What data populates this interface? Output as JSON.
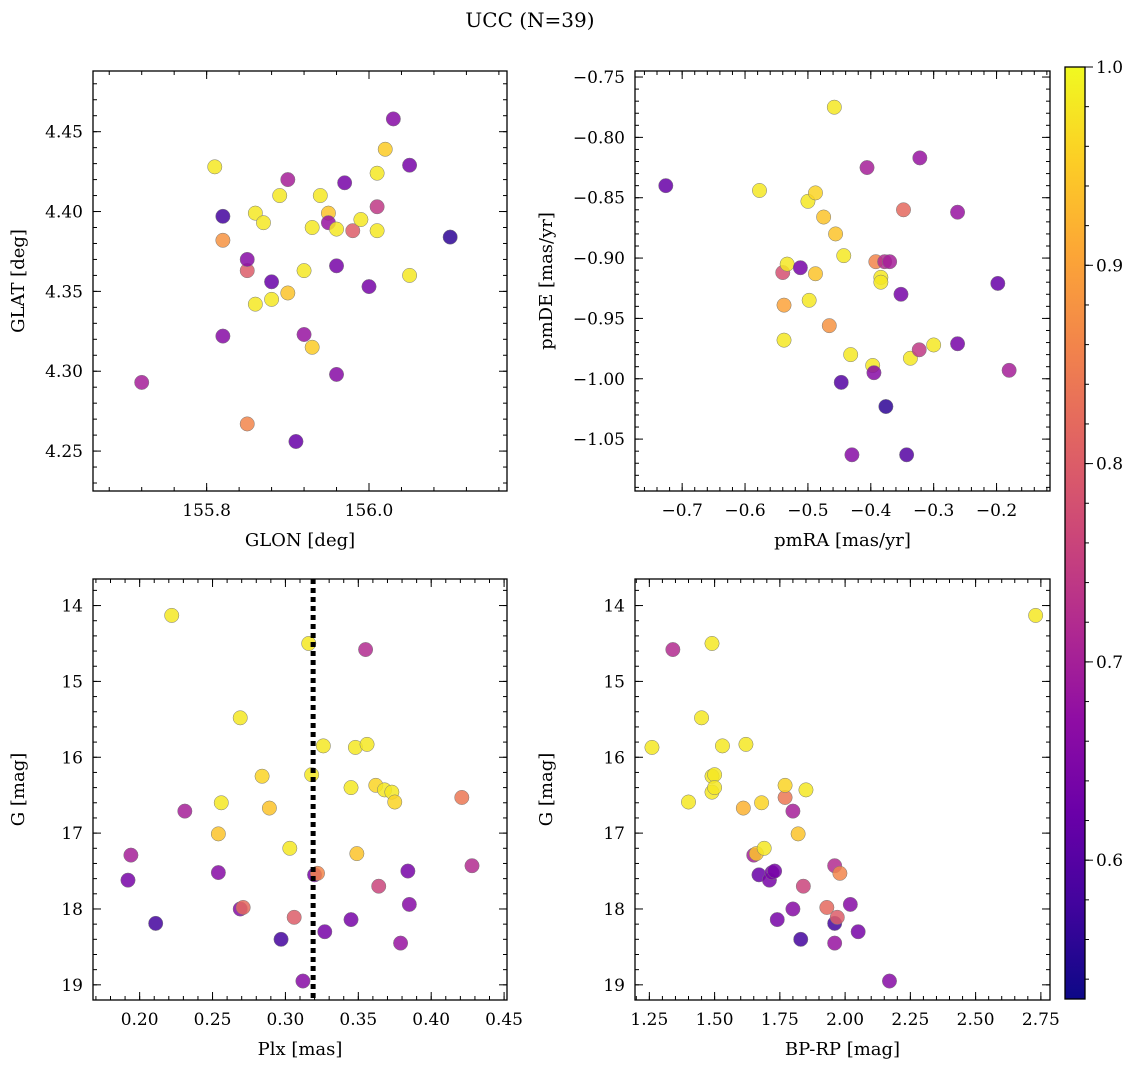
{
  "figure": {
    "title": "UCC (N=39)"
  },
  "colorbar": {
    "colormap": "plasma",
    "vmin": 0.53,
    "vmax": 1.0,
    "ticks": [
      0.6,
      0.7,
      0.8,
      0.9,
      1.0
    ],
    "tick_labels": [
      "0.6",
      "0.7",
      "0.8",
      "0.9",
      "1.0"
    ]
  },
  "chart_data": [
    {
      "type": "scatter",
      "id": "glon-glat",
      "xlabel": "GLON [deg]",
      "ylabel": "GLAT [deg]",
      "xlim": [
        155.66,
        156.17
      ],
      "ylim": [
        4.225,
        4.488
      ],
      "xticks": [
        155.8,
        156.0
      ],
      "xtick_labels": [
        "155.8",
        "156.0"
      ],
      "yticks": [
        4.25,
        4.3,
        4.35,
        4.4,
        4.45
      ],
      "ytick_labels": [
        "4.25",
        "4.30",
        "4.35",
        "4.40",
        "4.45"
      ],
      "points": [
        {
          "x": 155.72,
          "y": 4.293,
          "c": 0.7
        },
        {
          "x": 155.81,
          "y": 4.428,
          "c": 0.98
        },
        {
          "x": 155.82,
          "y": 4.397,
          "c": 0.58
        },
        {
          "x": 155.82,
          "y": 4.382,
          "c": 0.88
        },
        {
          "x": 155.82,
          "y": 4.322,
          "c": 0.66
        },
        {
          "x": 155.85,
          "y": 4.363,
          "c": 0.8
        },
        {
          "x": 155.85,
          "y": 4.37,
          "c": 0.66
        },
        {
          "x": 155.85,
          "y": 4.267,
          "c": 0.86
        },
        {
          "x": 155.86,
          "y": 4.399,
          "c": 0.98
        },
        {
          "x": 155.86,
          "y": 4.342,
          "c": 0.98
        },
        {
          "x": 155.87,
          "y": 4.393,
          "c": 0.98
        },
        {
          "x": 155.88,
          "y": 4.356,
          "c": 0.62
        },
        {
          "x": 155.88,
          "y": 4.345,
          "c": 0.98
        },
        {
          "x": 155.89,
          "y": 4.41,
          "c": 0.98
        },
        {
          "x": 155.9,
          "y": 4.42,
          "c": 0.7
        },
        {
          "x": 155.9,
          "y": 4.349,
          "c": 0.94
        },
        {
          "x": 155.91,
          "y": 4.256,
          "c": 0.62
        },
        {
          "x": 155.92,
          "y": 4.323,
          "c": 0.68
        },
        {
          "x": 155.92,
          "y": 4.363,
          "c": 0.98
        },
        {
          "x": 155.93,
          "y": 4.315,
          "c": 0.95
        },
        {
          "x": 155.93,
          "y": 4.39,
          "c": 0.98
        },
        {
          "x": 155.94,
          "y": 4.41,
          "c": 0.98
        },
        {
          "x": 155.95,
          "y": 4.399,
          "c": 0.94
        },
        {
          "x": 155.95,
          "y": 4.393,
          "c": 0.68
        },
        {
          "x": 155.96,
          "y": 4.389,
          "c": 0.98
        },
        {
          "x": 155.96,
          "y": 4.366,
          "c": 0.64
        },
        {
          "x": 155.96,
          "y": 4.298,
          "c": 0.66
        },
        {
          "x": 155.97,
          "y": 4.418,
          "c": 0.64
        },
        {
          "x": 155.98,
          "y": 4.388,
          "c": 0.8
        },
        {
          "x": 155.99,
          "y": 4.395,
          "c": 0.98
        },
        {
          "x": 156.0,
          "y": 4.353,
          "c": 0.64
        },
        {
          "x": 156.01,
          "y": 4.403,
          "c": 0.74
        },
        {
          "x": 156.01,
          "y": 4.388,
          "c": 0.98
        },
        {
          "x": 156.01,
          "y": 4.424,
          "c": 0.98
        },
        {
          "x": 156.02,
          "y": 4.439,
          "c": 0.95
        },
        {
          "x": 156.03,
          "y": 4.458,
          "c": 0.66
        },
        {
          "x": 156.05,
          "y": 4.36,
          "c": 0.98
        },
        {
          "x": 156.05,
          "y": 4.429,
          "c": 0.64
        },
        {
          "x": 156.1,
          "y": 4.384,
          "c": 0.56
        }
      ]
    },
    {
      "type": "scatter",
      "id": "pmra-pmde",
      "xlabel": "pmRA [mas/yr]",
      "ylabel": "pmDE [mas/yr]",
      "xlim": [
        -0.775,
        -0.115
      ],
      "ylim": [
        -1.093,
        -0.745
      ],
      "xticks": [
        -0.7,
        -0.6,
        -0.5,
        -0.4,
        -0.3,
        -0.2
      ],
      "xtick_labels": [
        "−0.7",
        "−0.6",
        "−0.5",
        "−0.4",
        "−0.3",
        "−0.2"
      ],
      "yticks": [
        -1.05,
        -1.0,
        -0.95,
        -0.9,
        -0.85,
        -0.8,
        -0.75
      ],
      "ytick_labels": [
        "−1.05",
        "−1.00",
        "−0.95",
        "−0.90",
        "−0.85",
        "−0.80",
        "−0.75"
      ],
      "points": [
        {
          "x": -0.726,
          "y": -0.84,
          "c": 0.62
        },
        {
          "x": -0.577,
          "y": -0.844,
          "c": 0.98
        },
        {
          "x": -0.54,
          "y": -0.912,
          "c": 0.78
        },
        {
          "x": -0.538,
          "y": -0.939,
          "c": 0.9
        },
        {
          "x": -0.538,
          "y": -0.968,
          "c": 0.98
        },
        {
          "x": -0.533,
          "y": -0.905,
          "c": 0.98
        },
        {
          "x": -0.512,
          "y": -0.908,
          "c": 0.64
        },
        {
          "x": -0.5,
          "y": -0.853,
          "c": 0.98
        },
        {
          "x": -0.498,
          "y": -0.935,
          "c": 0.98
        },
        {
          "x": -0.488,
          "y": -0.846,
          "c": 0.96
        },
        {
          "x": -0.488,
          "y": -0.913,
          "c": 0.94
        },
        {
          "x": -0.475,
          "y": -0.866,
          "c": 0.94
        },
        {
          "x": -0.466,
          "y": -0.956,
          "c": 0.88
        },
        {
          "x": -0.458,
          "y": -0.775,
          "c": 0.98
        },
        {
          "x": -0.456,
          "y": -0.88,
          "c": 0.94
        },
        {
          "x": -0.447,
          "y": -1.003,
          "c": 0.6
        },
        {
          "x": -0.443,
          "y": -0.898,
          "c": 0.98
        },
        {
          "x": -0.432,
          "y": -0.98,
          "c": 0.98
        },
        {
          "x": -0.43,
          "y": -1.063,
          "c": 0.66
        },
        {
          "x": -0.406,
          "y": -0.825,
          "c": 0.7
        },
        {
          "x": -0.397,
          "y": -0.989,
          "c": 0.98
        },
        {
          "x": -0.395,
          "y": -0.995,
          "c": 0.66
        },
        {
          "x": -0.392,
          "y": -0.903,
          "c": 0.86
        },
        {
          "x": -0.384,
          "y": -0.916,
          "c": 0.98
        },
        {
          "x": -0.384,
          "y": -0.92,
          "c": 0.98
        },
        {
          "x": -0.378,
          "y": -0.903,
          "c": 0.72
        },
        {
          "x": -0.376,
          "y": -1.023,
          "c": 0.56
        },
        {
          "x": -0.37,
          "y": -0.903,
          "c": 0.7
        },
        {
          "x": -0.352,
          "y": -0.93,
          "c": 0.64
        },
        {
          "x": -0.348,
          "y": -0.86,
          "c": 0.82
        },
        {
          "x": -0.343,
          "y": -1.063,
          "c": 0.6
        },
        {
          "x": -0.337,
          "y": -0.983,
          "c": 0.98
        },
        {
          "x": -0.323,
          "y": -0.976,
          "c": 0.74
        },
        {
          "x": -0.322,
          "y": -0.817,
          "c": 0.68
        },
        {
          "x": -0.3,
          "y": -0.972,
          "c": 0.98
        },
        {
          "x": -0.262,
          "y": -0.971,
          "c": 0.64
        },
        {
          "x": -0.262,
          "y": -0.862,
          "c": 0.68
        },
        {
          "x": -0.198,
          "y": -0.921,
          "c": 0.62
        },
        {
          "x": -0.18,
          "y": -0.993,
          "c": 0.7
        }
      ]
    },
    {
      "type": "scatter",
      "id": "plx-g",
      "xlabel": "Plx [mas]",
      "ylabel": "G [mag]",
      "xlim": [
        0.168,
        0.452
      ],
      "ylim": [
        19.2,
        13.65
      ],
      "xticks": [
        0.2,
        0.25,
        0.3,
        0.35,
        0.4,
        0.45
      ],
      "xtick_labels": [
        "0.20",
        "0.25",
        "0.30",
        "0.35",
        "0.40",
        "0.45"
      ],
      "yticks": [
        14,
        15,
        16,
        17,
        18,
        19
      ],
      "ytick_labels": [
        "14",
        "15",
        "16",
        "17",
        "18",
        "19"
      ],
      "vline": 0.319,
      "points": [
        {
          "x": 0.192,
          "y": 17.62,
          "c": 0.64
        },
        {
          "x": 0.194,
          "y": 17.29,
          "c": 0.7
        },
        {
          "x": 0.211,
          "y": 18.19,
          "c": 0.58
        },
        {
          "x": 0.222,
          "y": 14.13,
          "c": 0.98
        },
        {
          "x": 0.231,
          "y": 16.71,
          "c": 0.7
        },
        {
          "x": 0.254,
          "y": 17.52,
          "c": 0.66
        },
        {
          "x": 0.254,
          "y": 17.01,
          "c": 0.94
        },
        {
          "x": 0.256,
          "y": 16.6,
          "c": 0.98
        },
        {
          "x": 0.269,
          "y": 15.48,
          "c": 0.98
        },
        {
          "x": 0.269,
          "y": 18.0,
          "c": 0.66
        },
        {
          "x": 0.271,
          "y": 17.98,
          "c": 0.82
        },
        {
          "x": 0.284,
          "y": 16.25,
          "c": 0.96
        },
        {
          "x": 0.289,
          "y": 16.67,
          "c": 0.94
        },
        {
          "x": 0.297,
          "y": 18.4,
          "c": 0.58
        },
        {
          "x": 0.303,
          "y": 17.2,
          "c": 0.98
        },
        {
          "x": 0.306,
          "y": 18.11,
          "c": 0.8
        },
        {
          "x": 0.312,
          "y": 18.95,
          "c": 0.66
        },
        {
          "x": 0.316,
          "y": 14.5,
          "c": 0.98
        },
        {
          "x": 0.318,
          "y": 16.23,
          "c": 0.98
        },
        {
          "x": 0.32,
          "y": 17.55,
          "c": 0.64
        },
        {
          "x": 0.322,
          "y": 17.53,
          "c": 0.86
        },
        {
          "x": 0.326,
          "y": 15.85,
          "c": 0.98
        },
        {
          "x": 0.327,
          "y": 18.3,
          "c": 0.64
        },
        {
          "x": 0.345,
          "y": 16.4,
          "c": 0.98
        },
        {
          "x": 0.345,
          "y": 18.14,
          "c": 0.64
        },
        {
          "x": 0.348,
          "y": 15.87,
          "c": 0.98
        },
        {
          "x": 0.349,
          "y": 17.27,
          "c": 0.94
        },
        {
          "x": 0.355,
          "y": 14.58,
          "c": 0.72
        },
        {
          "x": 0.356,
          "y": 15.83,
          "c": 0.98
        },
        {
          "x": 0.362,
          "y": 16.37,
          "c": 0.96
        },
        {
          "x": 0.364,
          "y": 17.7,
          "c": 0.76
        },
        {
          "x": 0.368,
          "y": 16.43,
          "c": 0.98
        },
        {
          "x": 0.373,
          "y": 16.46,
          "c": 0.98
        },
        {
          "x": 0.375,
          "y": 16.59,
          "c": 0.96
        },
        {
          "x": 0.379,
          "y": 18.45,
          "c": 0.68
        },
        {
          "x": 0.384,
          "y": 17.5,
          "c": 0.64
        },
        {
          "x": 0.385,
          "y": 17.94,
          "c": 0.66
        },
        {
          "x": 0.421,
          "y": 16.53,
          "c": 0.84
        },
        {
          "x": 0.428,
          "y": 17.43,
          "c": 0.72
        }
      ]
    },
    {
      "type": "scatter",
      "id": "bprp-g",
      "xlabel": "BP-RP [mag]",
      "ylabel": "G [mag]",
      "xlim": [
        1.195,
        2.785
      ],
      "ylim": [
        19.2,
        13.65
      ],
      "xticks": [
        1.25,
        1.5,
        1.75,
        2.0,
        2.25,
        2.5,
        2.75
      ],
      "xtick_labels": [
        "1.25",
        "1.50",
        "1.75",
        "2.00",
        "2.25",
        "2.50",
        "2.75"
      ],
      "yticks": [
        14,
        15,
        16,
        17,
        18,
        19
      ],
      "ytick_labels": [
        "14",
        "15",
        "16",
        "17",
        "18",
        "19"
      ],
      "points": [
        {
          "x": 1.26,
          "y": 15.87,
          "c": 0.98
        },
        {
          "x": 1.34,
          "y": 14.58,
          "c": 0.72
        },
        {
          "x": 1.4,
          "y": 16.59,
          "c": 0.98
        },
        {
          "x": 1.45,
          "y": 15.48,
          "c": 0.98
        },
        {
          "x": 1.49,
          "y": 14.5,
          "c": 0.98
        },
        {
          "x": 1.49,
          "y": 16.25,
          "c": 0.98
        },
        {
          "x": 1.49,
          "y": 16.46,
          "c": 0.98
        },
        {
          "x": 1.5,
          "y": 16.23,
          "c": 0.98
        },
        {
          "x": 1.5,
          "y": 16.4,
          "c": 0.98
        },
        {
          "x": 1.53,
          "y": 15.85,
          "c": 0.98
        },
        {
          "x": 1.61,
          "y": 16.67,
          "c": 0.92
        },
        {
          "x": 1.62,
          "y": 15.83,
          "c": 0.98
        },
        {
          "x": 1.65,
          "y": 17.29,
          "c": 0.7
        },
        {
          "x": 1.66,
          "y": 17.27,
          "c": 0.94
        },
        {
          "x": 1.67,
          "y": 17.55,
          "c": 0.62
        },
        {
          "x": 1.68,
          "y": 16.6,
          "c": 0.96
        },
        {
          "x": 1.69,
          "y": 17.2,
          "c": 0.98
        },
        {
          "x": 1.71,
          "y": 17.62,
          "c": 0.64
        },
        {
          "x": 1.72,
          "y": 17.52,
          "c": 0.64
        },
        {
          "x": 1.73,
          "y": 17.5,
          "c": 0.64
        },
        {
          "x": 1.74,
          "y": 18.14,
          "c": 0.64
        },
        {
          "x": 1.77,
          "y": 16.53,
          "c": 0.84
        },
        {
          "x": 1.77,
          "y": 16.37,
          "c": 0.96
        },
        {
          "x": 1.8,
          "y": 18.0,
          "c": 0.66
        },
        {
          "x": 1.8,
          "y": 16.71,
          "c": 0.7
        },
        {
          "x": 1.82,
          "y": 17.01,
          "c": 0.94
        },
        {
          "x": 1.83,
          "y": 18.4,
          "c": 0.58
        },
        {
          "x": 1.84,
          "y": 17.7,
          "c": 0.76
        },
        {
          "x": 1.85,
          "y": 16.43,
          "c": 0.98
        },
        {
          "x": 1.93,
          "y": 17.98,
          "c": 0.82
        },
        {
          "x": 1.96,
          "y": 18.19,
          "c": 0.58
        },
        {
          "x": 1.96,
          "y": 17.43,
          "c": 0.72
        },
        {
          "x": 1.96,
          "y": 18.45,
          "c": 0.68
        },
        {
          "x": 1.97,
          "y": 18.11,
          "c": 0.8
        },
        {
          "x": 1.98,
          "y": 17.53,
          "c": 0.86
        },
        {
          "x": 2.02,
          "y": 17.94,
          "c": 0.66
        },
        {
          "x": 2.05,
          "y": 18.3,
          "c": 0.64
        },
        {
          "x": 2.17,
          "y": 18.95,
          "c": 0.66
        },
        {
          "x": 2.73,
          "y": 14.13,
          "c": 0.98
        }
      ]
    }
  ]
}
